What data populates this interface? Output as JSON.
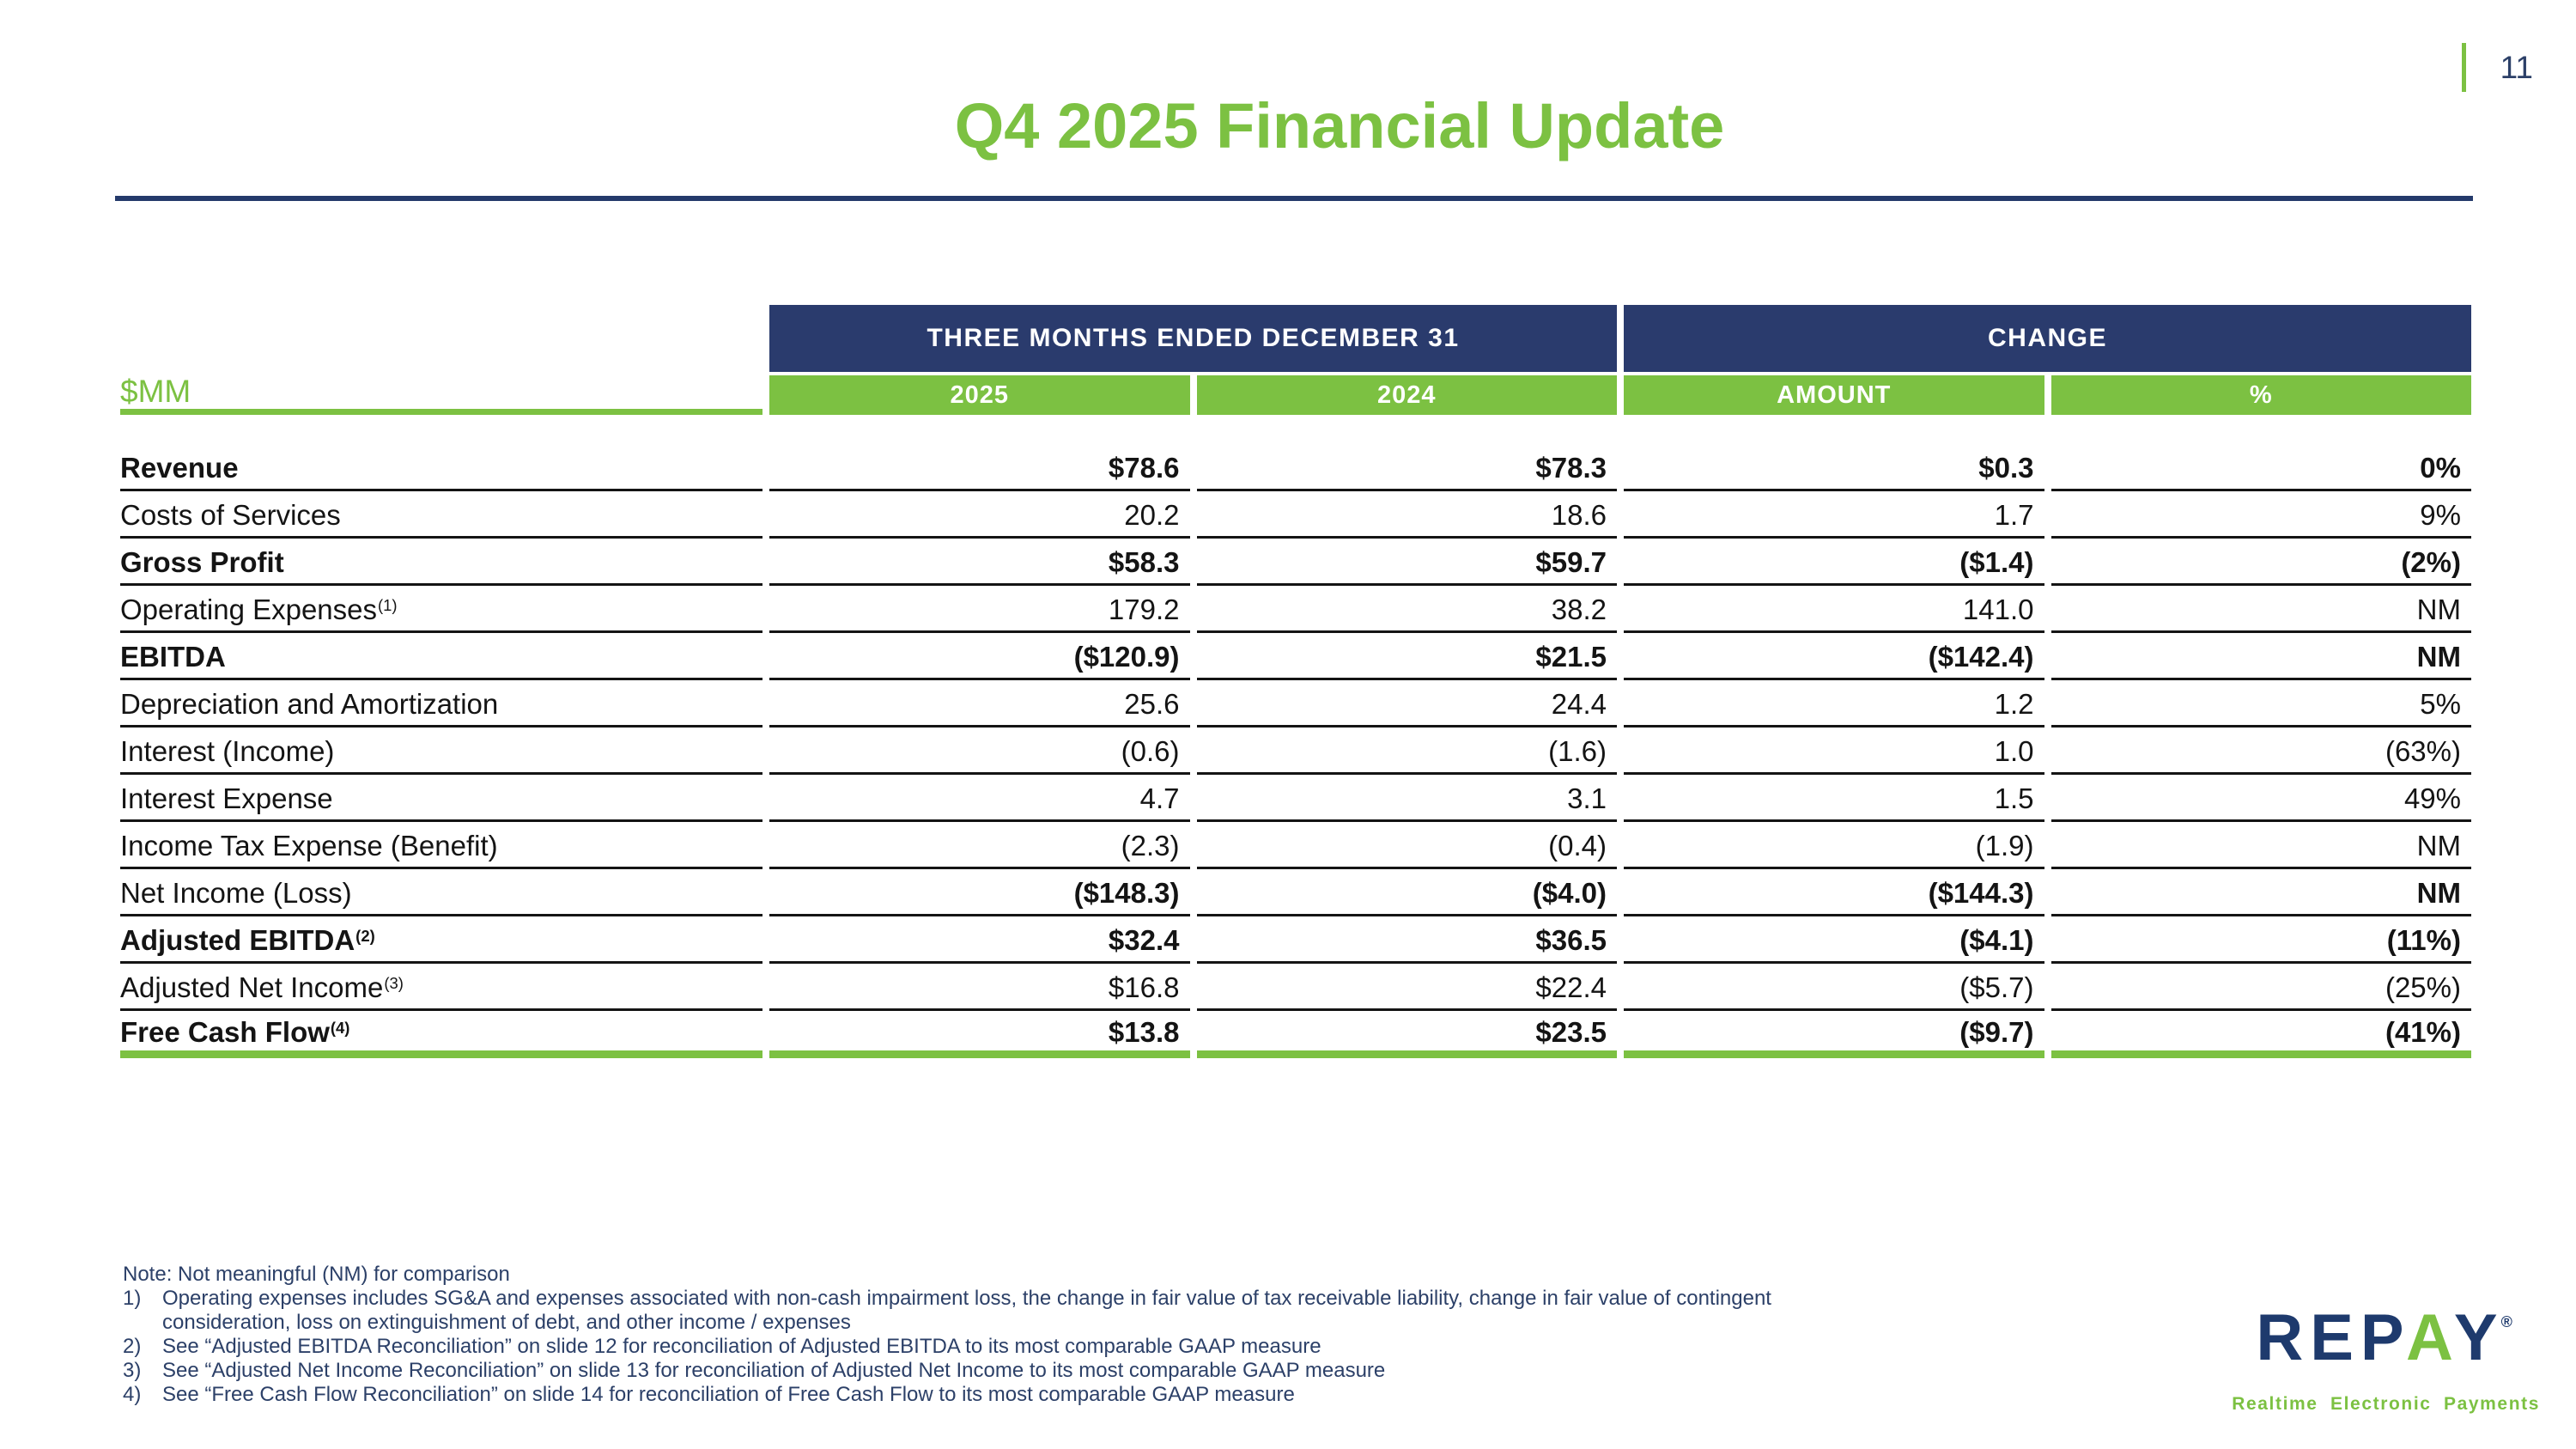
{
  "slide": {
    "page_number": "11"
  },
  "title": "Q4 2025 Financial Update",
  "table": {
    "unit_label": "$MM",
    "group_headers": {
      "period": "THREE MONTHS ENDED DECEMBER 31",
      "change": "CHANGE"
    },
    "columns": [
      "2025",
      "2024",
      "AMOUNT",
      "%"
    ],
    "rows": [
      {
        "label": "Revenue",
        "sup": "",
        "label_bold": true,
        "values_bold": true,
        "last": false,
        "values": [
          "$78.6",
          "$78.3",
          "$0.3",
          "0%"
        ]
      },
      {
        "label": "Costs of Services",
        "sup": "",
        "label_bold": false,
        "values_bold": false,
        "last": false,
        "values": [
          "20.2",
          "18.6",
          "1.7",
          "9%"
        ]
      },
      {
        "label": "Gross Profit",
        "sup": "",
        "label_bold": true,
        "values_bold": true,
        "last": false,
        "values": [
          "$58.3",
          "$59.7",
          "($1.4)",
          "(2%)"
        ]
      },
      {
        "label": "Operating Expenses",
        "sup": "(1)",
        "label_bold": false,
        "values_bold": false,
        "last": false,
        "values": [
          "179.2",
          "38.2",
          "141.0",
          "NM"
        ]
      },
      {
        "label": "EBITDA",
        "sup": "",
        "label_bold": true,
        "values_bold": true,
        "last": false,
        "values": [
          "($120.9)",
          "$21.5",
          "($142.4)",
          "NM"
        ]
      },
      {
        "label": "Depreciation and Amortization",
        "sup": "",
        "label_bold": false,
        "values_bold": false,
        "last": false,
        "values": [
          "25.6",
          "24.4",
          "1.2",
          "5%"
        ]
      },
      {
        "label": "Interest (Income)",
        "sup": "",
        "label_bold": false,
        "values_bold": false,
        "last": false,
        "values": [
          "(0.6)",
          "(1.6)",
          "1.0",
          "(63%)"
        ]
      },
      {
        "label": "Interest Expense",
        "sup": "",
        "label_bold": false,
        "values_bold": false,
        "last": false,
        "values": [
          "4.7",
          "3.1",
          "1.5",
          "49%"
        ]
      },
      {
        "label": "Income Tax Expense (Benefit)",
        "sup": "",
        "label_bold": false,
        "values_bold": false,
        "last": false,
        "values": [
          "(2.3)",
          "(0.4)",
          "(1.9)",
          "NM"
        ]
      },
      {
        "label": "Net Income (Loss)",
        "sup": "",
        "label_bold": false,
        "values_bold": true,
        "last": false,
        "values": [
          "($148.3)",
          "($4.0)",
          "($144.3)",
          "NM"
        ]
      },
      {
        "label": "Adjusted EBITDA",
        "sup": "(2)",
        "label_bold": true,
        "values_bold": true,
        "last": false,
        "values": [
          "$32.4",
          "$36.5",
          "($4.1)",
          "(11%)"
        ]
      },
      {
        "label": "Adjusted Net Income",
        "sup": "(3)",
        "label_bold": false,
        "values_bold": false,
        "last": false,
        "values": [
          "$16.8",
          "$22.4",
          "($5.7)",
          "(25%)"
        ]
      },
      {
        "label": "Free Cash Flow",
        "sup": "(4)",
        "label_bold": true,
        "values_bold": true,
        "last": true,
        "values": [
          "$13.8",
          "$23.5",
          "($9.7)",
          "(41%)"
        ]
      }
    ]
  },
  "footnotes": {
    "note": "Note: Not meaningful (NM) for comparison",
    "items": [
      {
        "num": "1)",
        "text": "Operating expenses includes SG&A and expenses associated with non-cash impairment loss, the change in fair value of tax receivable liability, change in fair value of contingent consideration, loss on extinguishment of debt, and other income / expenses"
      },
      {
        "num": "2)",
        "text": "See “Adjusted EBITDA Reconciliation” on slide 12 for reconciliation of Adjusted EBITDA to its most comparable GAAP measure"
      },
      {
        "num": "3)",
        "text": "See “Adjusted Net Income Reconciliation” on slide 13 for reconciliation of Adjusted Net Income to its most comparable GAAP measure"
      },
      {
        "num": "4)",
        "text": "See “Free Cash Flow Reconciliation” on slide 14 for reconciliation of Free Cash Flow to its most comparable GAAP measure"
      }
    ]
  },
  "logo": {
    "wordmark_prefix": "REP",
    "wordmark_accent": "A",
    "wordmark_suffix": "Y",
    "registered_mark": "®",
    "tagline": "Realtime Electronic Payments"
  },
  "colors": {
    "green": "#7CC142",
    "navy": "#2A3B6D",
    "rule_navy": "#243A6B",
    "footnote_navy": "#2C4068",
    "logo_navy": "#1E3A6D",
    "table_text": "#141414",
    "line_black": "#141414"
  }
}
